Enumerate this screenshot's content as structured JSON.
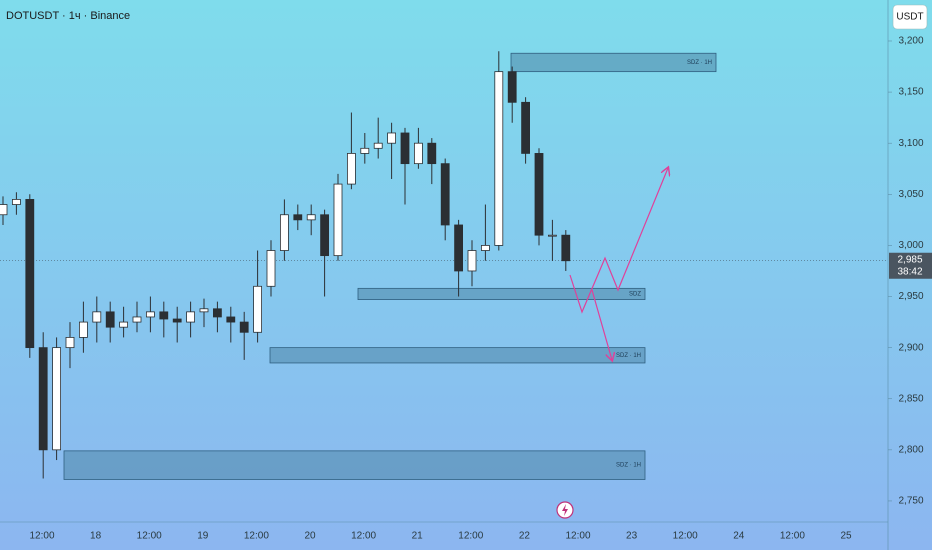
{
  "chart_data": {
    "type": "candlestick",
    "title": "DOTUSDT · 1ч · Binance",
    "currency_button": "USDT",
    "categories": [
      "12:00",
      "18",
      "12:00",
      "19",
      "12:00",
      "20",
      "12:00",
      "21",
      "12:00",
      "22",
      "12:00",
      "23",
      "12:00",
      "24",
      "12:00",
      "25"
    ],
    "open": [
      3030,
      3040,
      3045,
      2900,
      2800,
      2900,
      2910,
      2925,
      2935,
      2920,
      2925,
      2930,
      2935,
      2928,
      2925,
      2935,
      2938,
      2930,
      2925,
      2915,
      2960,
      2995,
      3030,
      3025,
      3030,
      2990,
      3060,
      3090,
      3095,
      3100,
      3110,
      3080,
      3100,
      3080,
      3020,
      2975,
      2995,
      3000,
      3170,
      3140,
      3090,
      3010,
      3010
    ],
    "high": [
      3048,
      3052,
      3050,
      2915,
      2910,
      2925,
      2945,
      2950,
      2945,
      2940,
      2945,
      2950,
      2945,
      2940,
      2945,
      2948,
      2945,
      2940,
      2935,
      2995,
      3005,
      3045,
      3040,
      3040,
      3035,
      3070,
      3130,
      3110,
      3125,
      3120,
      3115,
      3115,
      3105,
      3085,
      3025,
      3005,
      3040,
      3190,
      3175,
      3145,
      3095,
      3025,
      3015
    ],
    "low": [
      3020,
      3030,
      2890,
      2772,
      2790,
      2880,
      2895,
      2905,
      2905,
      2910,
      2915,
      2915,
      2910,
      2905,
      2910,
      2920,
      2915,
      2905,
      2888,
      2905,
      2950,
      2985,
      3015,
      3010,
      2950,
      2985,
      3055,
      3080,
      3085,
      3065,
      3040,
      3075,
      3060,
      3005,
      2950,
      2960,
      2985,
      2995,
      3120,
      3080,
      3000,
      2985,
      2975
    ],
    "close": [
      3040,
      3045,
      2900,
      2800,
      2900,
      2910,
      2925,
      2935,
      2920,
      2925,
      2930,
      2935,
      2928,
      2925,
      2935,
      2938,
      2930,
      2925,
      2915,
      2960,
      2995,
      3030,
      3025,
      3030,
      2990,
      3060,
      3090,
      3095,
      3100,
      3110,
      3080,
      3100,
      3080,
      3020,
      2975,
      2995,
      3000,
      3170,
      3140,
      3090,
      3010,
      3010,
      2985
    ],
    "zones": [
      {
        "label": "SDZ · 1H",
        "top": 3188,
        "bottom": 3170
      },
      {
        "label": "SDZ",
        "top": 2958,
        "bottom": 2947
      },
      {
        "label": "SDZ · 1H",
        "top": 2900,
        "bottom": 2885
      },
      {
        "label": "SDZ · 1H",
        "top": 2799,
        "bottom": 2771
      }
    ],
    "last_price": {
      "value": 2985,
      "label": "2,985"
    },
    "countdown": "38:42",
    "ylim": [
      2729.4,
      3240.1
    ],
    "yticks": [
      {
        "value": 2750,
        "label": "2,750"
      },
      {
        "value": 2800,
        "label": "2,800"
      },
      {
        "value": 2850,
        "label": "2,850"
      },
      {
        "value": 2900,
        "label": "2,900"
      },
      {
        "value": 2950,
        "label": "2,950"
      },
      {
        "value": 3000,
        "label": "3,000"
      },
      {
        "value": 3050,
        "label": "3,050"
      },
      {
        "value": 3100,
        "label": "3,100"
      },
      {
        "value": 3150,
        "label": "3,150"
      },
      {
        "value": 3200,
        "label": "3,200"
      }
    ],
    "up_color": "#ffffff",
    "down_color": "#2b2f33",
    "zone_color": "#4f86a8"
  }
}
